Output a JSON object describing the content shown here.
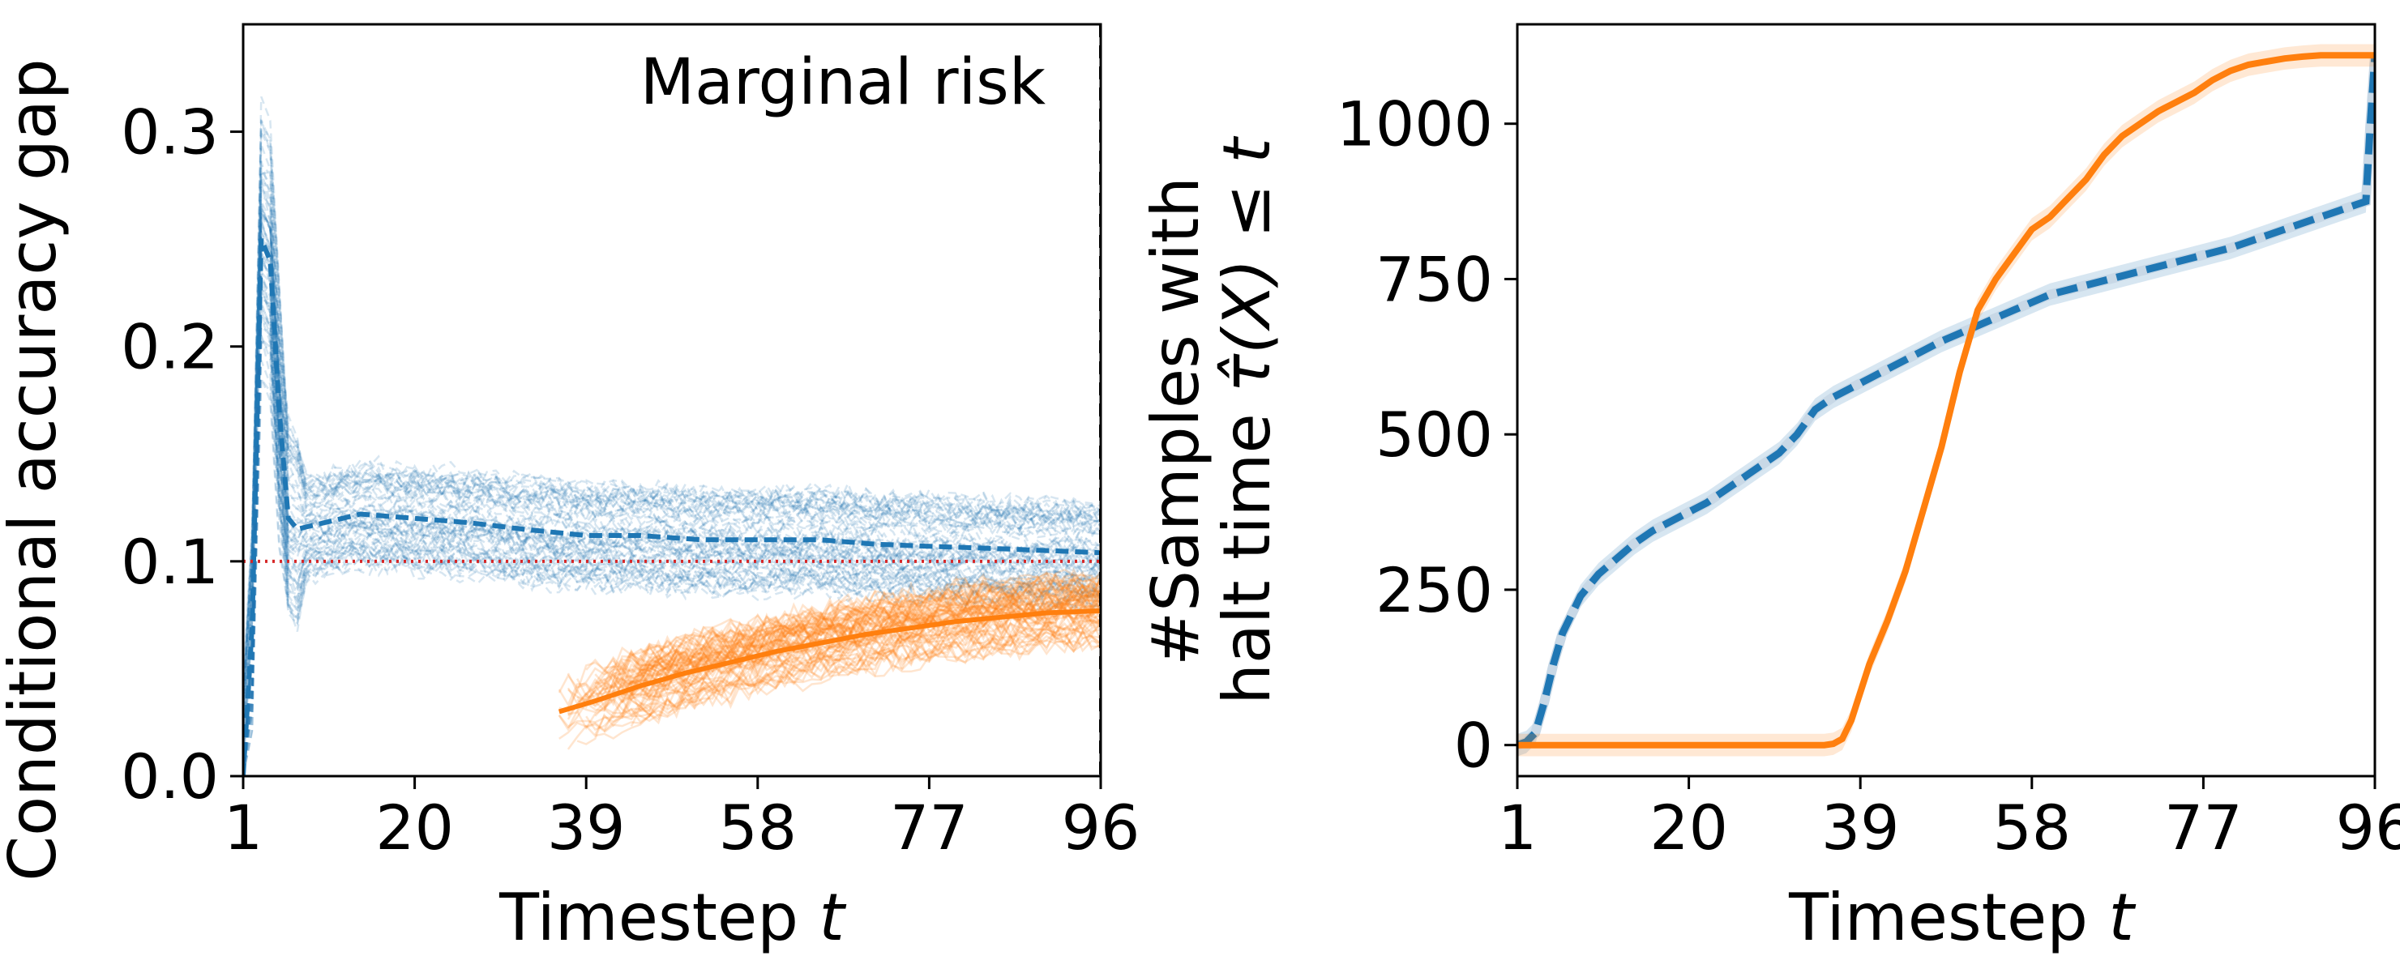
{
  "chart_data": [
    {
      "type": "line",
      "panel": "left",
      "ylabel": "Conditional accuracy gap",
      "xlabel": "Timestep",
      "xlabel_var": "t",
      "xlim": [
        1,
        96
      ],
      "ylim": [
        0,
        0.35
      ],
      "xticks": [
        1,
        20,
        39,
        58,
        77,
        96
      ],
      "yticks": [
        0.0,
        0.1,
        0.2,
        0.3
      ],
      "ytick_labels": [
        "0.0",
        "0.1",
        "0.2",
        "0.3"
      ],
      "reference_line": {
        "y": 0.1,
        "color": "#d62728",
        "style": "dotted"
      },
      "vertical_line": {
        "x": 96,
        "color": "#000000",
        "style": "dashed"
      },
      "annotation": "Marginal risk",
      "series": [
        {
          "name": "blue runs",
          "color": "#1f77b4",
          "style": "dashed-faint-bundle",
          "mean": {
            "x": [
              1,
              2,
              3,
              4,
              5,
              6,
              7,
              10,
              14,
              20,
              26,
              32,
              39,
              45,
              52,
              58,
              65,
              71,
              77,
              84,
              90,
              96
            ],
            "y": [
              0.0,
              0.07,
              0.25,
              0.24,
              0.17,
              0.12,
              0.115,
              0.118,
              0.122,
              0.12,
              0.118,
              0.115,
              0.112,
              0.112,
              0.11,
              0.11,
              0.11,
              0.108,
              0.107,
              0.106,
              0.105,
              0.104
            ]
          }
        },
        {
          "name": "orange runs",
          "color": "#ff7f0e",
          "style": "solid-faint-bundle",
          "mean": {
            "x": [
              36,
              40,
              45,
              50,
              55,
              60,
              65,
              70,
              75,
              80,
              85,
              90,
              96
            ],
            "y": [
              0.03,
              0.035,
              0.042,
              0.048,
              0.053,
              0.058,
              0.062,
              0.066,
              0.069,
              0.072,
              0.074,
              0.076,
              0.077
            ]
          }
        }
      ]
    },
    {
      "type": "line",
      "panel": "right",
      "ylabel_lines": [
        "#Samples with",
        "halt time"
      ],
      "ylabel_math": "τ̂(X) ≤ t",
      "xlabel": "Timestep",
      "xlabel_var": "t",
      "xlim": [
        1,
        96
      ],
      "ylim": [
        -50,
        1160
      ],
      "xticks": [
        1,
        20,
        39,
        58,
        77,
        96
      ],
      "yticks": [
        0,
        250,
        500,
        750,
        1000
      ],
      "series": [
        {
          "name": "blue",
          "color": "#1f77b4",
          "style": "dashed",
          "x": [
            1,
            2,
            3,
            4,
            5,
            6,
            8,
            10,
            12,
            14,
            16,
            18,
            20,
            22,
            24,
            26,
            28,
            30,
            32,
            34,
            36,
            38,
            40,
            44,
            48,
            52,
            56,
            60,
            64,
            68,
            72,
            76,
            80,
            84,
            88,
            92,
            94,
            95,
            95.5,
            96
          ],
          "y": [
            0,
            5,
            20,
            70,
            130,
            180,
            240,
            275,
            300,
            325,
            345,
            360,
            375,
            390,
            410,
            430,
            450,
            470,
            500,
            540,
            560,
            575,
            590,
            620,
            650,
            675,
            700,
            725,
            740,
            755,
            770,
            785,
            800,
            820,
            840,
            860,
            870,
            875,
            1000,
            1110
          ]
        },
        {
          "name": "orange",
          "color": "#ff7f0e",
          "style": "solid",
          "x": [
            1,
            10,
            20,
            30,
            34,
            35,
            36,
            37,
            38,
            40,
            42,
            44,
            46,
            48,
            50,
            52,
            54,
            56,
            58,
            60,
            62,
            64,
            66,
            68,
            70,
            72,
            74,
            76,
            78,
            80,
            82,
            84,
            86,
            88,
            90,
            92,
            94,
            96
          ],
          "y": [
            0,
            0,
            0,
            0,
            0,
            0,
            2,
            10,
            40,
            130,
            200,
            280,
            380,
            480,
            600,
            700,
            750,
            790,
            830,
            850,
            880,
            910,
            950,
            980,
            1000,
            1020,
            1035,
            1050,
            1070,
            1085,
            1095,
            1100,
            1105,
            1108,
            1110,
            1110,
            1110,
            1110
          ]
        }
      ]
    }
  ]
}
